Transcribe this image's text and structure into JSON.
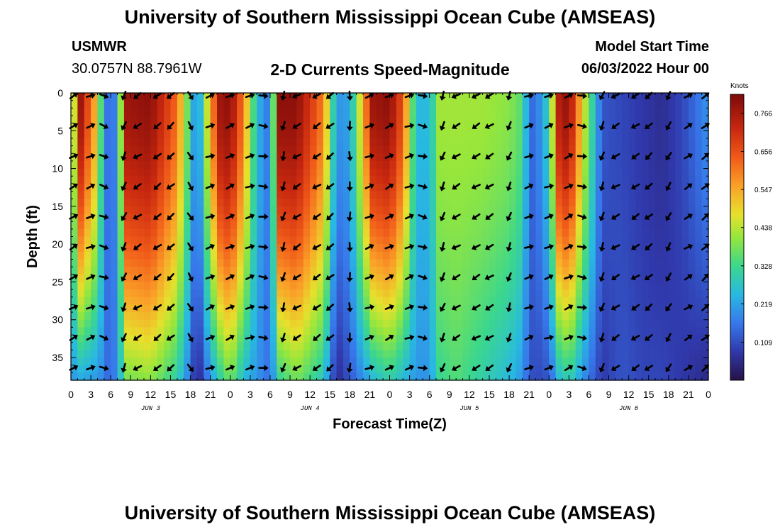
{
  "header": {
    "title": "University of Southern Mississippi Ocean Cube (AMSEAS)",
    "station": "USMWR",
    "coordinates": "30.0757N  88.7961W",
    "subtitle": "2-D Currents Speed-Magnitude",
    "model_start_label": "Model Start Time",
    "model_start_value": "06/03/2022 Hour 00"
  },
  "footer": {
    "title": "University of Southern Mississippi Ocean Cube (AMSEAS)"
  },
  "chart_data": {
    "type": "heatmap",
    "title": "2-D Currents Speed-Magnitude",
    "xlabel": "Forecast Time(Z)",
    "ylabel": "Depth (ft)",
    "x_range_hours": [
      0,
      96
    ],
    "y_range_ft": [
      0,
      38
    ],
    "x_tick_labels": [
      "0",
      "3",
      "6",
      "9",
      "12",
      "15",
      "18",
      "21",
      "0",
      "3",
      "6",
      "9",
      "12",
      "15",
      "18",
      "21",
      "0",
      "3",
      "6",
      "9",
      "12",
      "15",
      "18",
      "21",
      "0",
      "3",
      "6",
      "9",
      "12",
      "15",
      "18",
      "21",
      "0"
    ],
    "day_labels": [
      {
        "label": "JUN 3",
        "hour": 12
      },
      {
        "label": "JUN 4",
        "hour": 36
      },
      {
        "label": "JUN 5",
        "hour": 60
      },
      {
        "label": "JUN 6",
        "hour": 84
      }
    ],
    "y_ticks": [
      0,
      5,
      10,
      15,
      20,
      25,
      30,
      35
    ],
    "colorbar": {
      "unit": "Knots",
      "tick_labels": [
        "0.766",
        "0.656",
        "0.547",
        "0.438",
        "0.328",
        "0.219",
        "0.109"
      ],
      "tick_values": [
        0.766,
        0.656,
        0.547,
        0.438,
        0.328,
        0.219,
        0.109
      ],
      "min": 0.0,
      "max": 0.82
    },
    "speed_profile": {
      "description": "approximate speed (knots) vs forecast hour: surface value and value at 38 ft",
      "hours": [
        0,
        1.5,
        4,
        5,
        6,
        7,
        8.5,
        12,
        16,
        18,
        19,
        21,
        22.5,
        24,
        26,
        28,
        30,
        31.5,
        34,
        38,
        40,
        42,
        45.5,
        48,
        50,
        52,
        54,
        55.5,
        58,
        62,
        66,
        68,
        69,
        70,
        72,
        73.5,
        75,
        77,
        80,
        83,
        86,
        89,
        92,
        96
      ],
      "surface": [
        0.3,
        0.78,
        0.5,
        0.2,
        0.12,
        0.22,
        0.78,
        0.8,
        0.62,
        0.3,
        0.15,
        0.55,
        0.78,
        0.8,
        0.6,
        0.25,
        0.15,
        0.8,
        0.8,
        0.6,
        0.2,
        0.22,
        0.78,
        0.8,
        0.65,
        0.25,
        0.25,
        0.42,
        0.42,
        0.42,
        0.4,
        0.35,
        0.15,
        0.15,
        0.3,
        0.75,
        0.8,
        0.5,
        0.12,
        0.1,
        0.08,
        0.06,
        0.1,
        0.2
      ],
      "bottom": [
        0.2,
        0.22,
        0.2,
        0.18,
        0.12,
        0.22,
        0.38,
        0.4,
        0.3,
        0.15,
        0.03,
        0.2,
        0.3,
        0.38,
        0.25,
        0.2,
        0.15,
        0.32,
        0.38,
        0.28,
        0.05,
        0.12,
        0.25,
        0.3,
        0.25,
        0.2,
        0.2,
        0.32,
        0.35,
        0.3,
        0.25,
        0.2,
        0.12,
        0.1,
        0.12,
        0.25,
        0.3,
        0.2,
        0.08,
        0.12,
        0.1,
        0.1,
        0.08,
        0.05
      ]
    },
    "arrow_depths_ft": [
      0,
      4,
      8,
      12,
      16,
      20,
      24,
      28,
      32,
      36
    ],
    "arrow_hours": [
      0,
      3,
      5,
      8,
      10,
      13,
      15,
      18,
      21,
      24,
      27,
      29,
      32,
      34,
      37,
      39,
      42,
      45,
      48,
      51,
      53,
      56,
      58,
      61,
      63,
      66,
      69,
      72,
      75,
      77,
      80,
      82,
      85,
      87,
      90,
      93,
      96
    ],
    "arrow_direction_by_hour_deg": {
      "hours": [
        0,
        3,
        6,
        9,
        12,
        15,
        18,
        21,
        24,
        27,
        30,
        33,
        36,
        39,
        42,
        45,
        48,
        51,
        54,
        57,
        60,
        63,
        66,
        69,
        72,
        75,
        78,
        81,
        84,
        87,
        90,
        93,
        96
      ],
      "angle": [
        -30,
        -20,
        40,
        150,
        145,
        140,
        60,
        -20,
        -25,
        -20,
        20,
        150,
        150,
        140,
        90,
        -20,
        -25,
        -20,
        30,
        150,
        150,
        150,
        110,
        -20,
        -20,
        -25,
        30,
        150,
        150,
        140,
        120,
        -30,
        -40
      ]
    }
  }
}
